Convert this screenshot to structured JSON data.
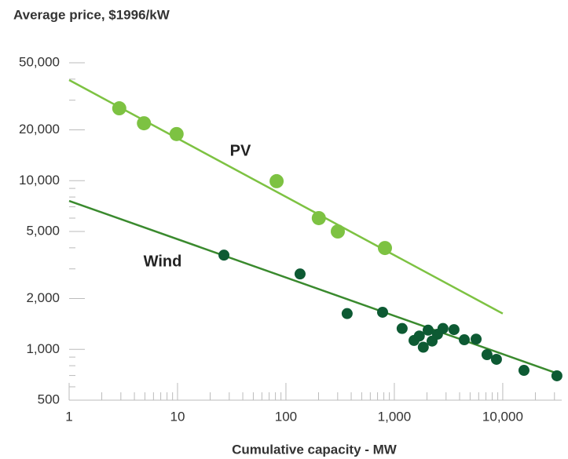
{
  "chart_data": {
    "type": "scatter",
    "title": "Average price, $1996/kW",
    "xlabel": "Cumulative capacity - MW",
    "xscale": "log",
    "yscale": "log",
    "xlim": [
      1,
      35000
    ],
    "ylim": [
      500,
      50000
    ],
    "xticks": [
      1,
      10,
      100,
      {
        "value": 1000,
        "label": "1,000"
      },
      {
        "value": 10000,
        "label": "10,000"
      }
    ],
    "yticks": [
      500,
      {
        "value": 1000,
        "label": "1,000"
      },
      {
        "value": 2000,
        "label": "2,000"
      },
      {
        "value": 5000,
        "label": "5,000"
      },
      {
        "value": 10000,
        "label": "10,000"
      },
      {
        "value": 20000,
        "label": "20,000"
      },
      {
        "value": 50000,
        "label": "50,000"
      }
    ],
    "xminorticks": [
      2,
      3,
      4,
      5,
      6,
      7,
      8,
      9,
      20,
      30,
      40,
      50,
      60,
      70,
      80,
      90,
      200,
      300,
      400,
      500,
      600,
      700,
      800,
      900,
      2000,
      3000,
      4000,
      5000,
      6000,
      7000,
      8000,
      9000,
      20000,
      30000
    ],
    "yminorticks": [
      600,
      700,
      800,
      900,
      3000,
      4000,
      6000,
      7000,
      8000,
      9000,
      30000,
      40000
    ],
    "series": [
      {
        "name": "PV",
        "color": "#7dc242",
        "line_color": "#7dc242",
        "x": [
          2.9,
          4.9,
          9.8,
          82,
          201,
          301,
          819
        ],
        "values": [
          26850,
          21900,
          18900,
          9930,
          6000,
          5000,
          3990
        ],
        "trend_x": [
          1,
          10000
        ],
        "trend_values": [
          39500,
          1630
        ]
      },
      {
        "name": "Wind",
        "color": "#0d5a33",
        "line_color": "#3a8a2e",
        "x": [
          26.8,
          135,
          367,
          779,
          1180,
          1520,
          1700,
          1850,
          2050,
          2230,
          2500,
          2810,
          3550,
          4420,
          5680,
          7160,
          8750,
          15700,
          31600
        ],
        "values": [
          3620,
          2800,
          1630,
          1660,
          1330,
          1130,
          1200,
          1030,
          1300,
          1120,
          1230,
          1330,
          1310,
          1140,
          1150,
          930,
          873,
          751,
          697
        ],
        "trend_x": [
          1,
          35000
        ],
        "trend_values": [
          7590,
          705
        ]
      }
    ]
  }
}
